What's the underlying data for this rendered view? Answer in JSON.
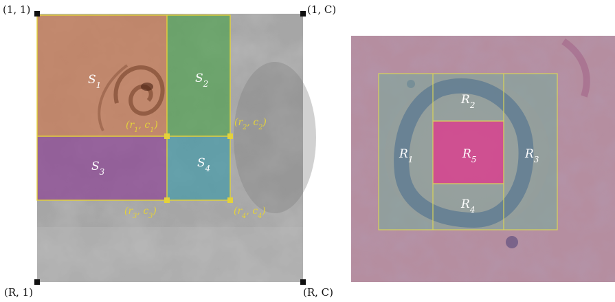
{
  "left_panel": {
    "corners": {
      "top_left": "(1, 1)",
      "top_right": "(1, C)",
      "bottom_left": "(R, 1)",
      "bottom_right": "(R, C)"
    },
    "regions": [
      {
        "label": "S1",
        "color": "#c97a55"
      },
      {
        "label": "S2",
        "color": "#4fa14f"
      },
      {
        "label": "S3",
        "color": "#8a3f93"
      },
      {
        "label": "S4",
        "color": "#3f98a6"
      }
    ],
    "points": [
      "(r1, c1)",
      "(r2, c2)",
      "(r3, c3)",
      "(r4, c4)"
    ]
  },
  "right_panel": {
    "regions": [
      {
        "label": "R1"
      },
      {
        "label": "R2"
      },
      {
        "label": "R3"
      },
      {
        "label": "R4"
      },
      {
        "label": "R5",
        "color": "#d43c8c"
      }
    ]
  },
  "colors": {
    "outline": "#e4d23a",
    "marker": "#111111"
  }
}
